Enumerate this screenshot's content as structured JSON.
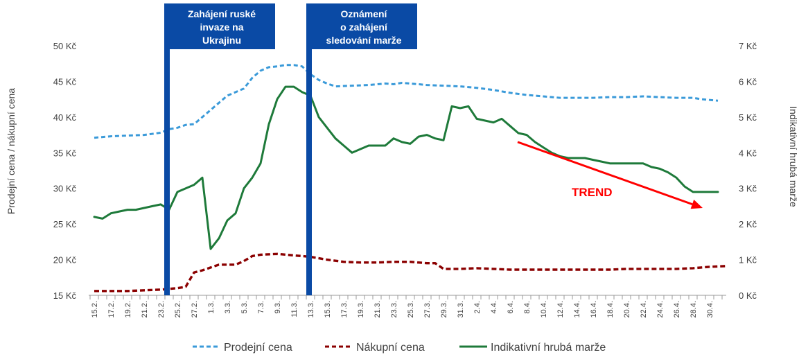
{
  "chart_data": {
    "type": "line",
    "ylabel": "Prodejní cena / nákupní cena",
    "y2label": "Indikativní  hrubá  marže",
    "ylim": [
      15,
      50
    ],
    "y2lim": [
      0,
      7
    ],
    "yticks": [
      "15 Kč",
      "20 Kč",
      "25 Kč",
      "30 Kč",
      "35 Kč",
      "40 Kč",
      "45 Kč",
      "50 Kč"
    ],
    "y2ticks": [
      "0 Kč",
      "1 Kč",
      "2 Kč",
      "3 Kč",
      "4 Kč",
      "5 Kč",
      "6 Kč",
      "7 Kč"
    ],
    "x_tick_labels": [
      "15.2.",
      "17.2.",
      "19.2.",
      "21.2.",
      "23.2.",
      "25.2.",
      "27.2.",
      "1.3.",
      "3.3.",
      "5.3.",
      "7.3.",
      "9.3.",
      "11.3.",
      "13.3.",
      "15.3.",
      "17.3.",
      "19.3.",
      "21.3.",
      "23.3.",
      "25.3.",
      "27.3.",
      "29.3.",
      "31.3.",
      "2.4.",
      "4.4.",
      "6.4.",
      "8.4.",
      "10.4.",
      "12.4.",
      "14.4.",
      "16.4.",
      "18.4.",
      "20.4.",
      "22.4.",
      "24.4.",
      "26.4.",
      "28.4.",
      "30.4."
    ],
    "series": [
      {
        "name": "Prodejní cena",
        "axis": "left",
        "color": "#3a9ad9",
        "dash": "dashed",
        "x": [
          0,
          4,
          8,
          12,
          16,
          18,
          20,
          22,
          24,
          26,
          28,
          30,
          32,
          34,
          36,
          38,
          40,
          42,
          44,
          46,
          48,
          50,
          52,
          54,
          56,
          58,
          62,
          66,
          70,
          72,
          74,
          76,
          78,
          80,
          84,
          88,
          92,
          96,
          100,
          104,
          108,
          112,
          116,
          120,
          124,
          128,
          132,
          136,
          140,
          144,
          146,
          150
        ],
        "values": [
          37.1,
          37.3,
          37.4,
          37.5,
          37.8,
          38.3,
          38.5,
          38.9,
          39.0,
          40.0,
          41.0,
          42.0,
          43.0,
          43.5,
          44.0,
          45.5,
          46.5,
          47.0,
          47.1,
          47.3,
          47.3,
          47.1,
          46.0,
          45.2,
          44.7,
          44.3,
          44.4,
          44.5,
          44.7,
          44.6,
          44.8,
          44.7,
          44.6,
          44.5,
          44.4,
          44.3,
          44.1,
          43.8,
          43.4,
          43.1,
          42.9,
          42.7,
          42.7,
          42.7,
          42.8,
          42.8,
          42.9,
          42.8,
          42.7,
          42.7,
          42.5,
          42.3
        ]
      },
      {
        "name": "Nákupní cena",
        "axis": "left",
        "color": "#8b0000",
        "dash": "dashed",
        "x": [
          0,
          4,
          8,
          12,
          16,
          20,
          22,
          24,
          26,
          28,
          30,
          34,
          36,
          38,
          40,
          44,
          48,
          52,
          56,
          60,
          64,
          68,
          72,
          76,
          80,
          82,
          84,
          88,
          92,
          96,
          100,
          104,
          108,
          112,
          116,
          120,
          124,
          128,
          132,
          136,
          140,
          144,
          148,
          152
        ],
        "values": [
          15.6,
          15.6,
          15.6,
          15.7,
          15.8,
          16.0,
          16.2,
          18.2,
          18.5,
          18.9,
          19.3,
          19.3,
          19.8,
          20.5,
          20.7,
          20.8,
          20.6,
          20.4,
          20.0,
          19.7,
          19.6,
          19.6,
          19.7,
          19.7,
          19.5,
          19.5,
          18.7,
          18.7,
          18.8,
          18.7,
          18.6,
          18.6,
          18.6,
          18.6,
          18.6,
          18.6,
          18.6,
          18.7,
          18.7,
          18.7,
          18.7,
          18.8,
          19.0,
          19.1
        ]
      },
      {
        "name": "Indikativní hrubá marže",
        "axis": "right",
        "color": "#1e7a3a",
        "dash": "solid",
        "x": [
          0,
          2,
          4,
          6,
          8,
          10,
          12,
          14,
          16,
          18,
          20,
          22,
          24,
          26,
          28,
          30,
          32,
          34,
          36,
          38,
          40,
          42,
          44,
          46,
          48,
          50,
          52,
          54,
          56,
          58,
          60,
          62,
          64,
          66,
          68,
          70,
          72,
          74,
          76,
          78,
          80,
          82,
          84,
          86,
          88,
          90,
          92,
          94,
          96,
          98,
          100,
          102,
          104,
          106,
          108,
          110,
          112,
          114,
          116,
          118,
          120,
          122,
          124,
          126,
          128,
          130,
          132,
          134,
          136,
          138,
          140,
          142,
          144,
          146,
          148,
          150
        ],
        "values": [
          2.2,
          2.15,
          2.3,
          2.35,
          2.4,
          2.4,
          2.45,
          2.5,
          2.55,
          2.4,
          2.9,
          3.0,
          3.1,
          3.3,
          1.3,
          1.6,
          2.1,
          2.3,
          3.0,
          3.3,
          3.7,
          4.8,
          5.5,
          5.85,
          5.85,
          5.7,
          5.6,
          5.0,
          4.7,
          4.4,
          4.2,
          4.0,
          4.1,
          4.2,
          4.2,
          4.2,
          4.4,
          4.3,
          4.25,
          4.45,
          4.5,
          4.4,
          4.35,
          5.3,
          5.25,
          5.3,
          4.95,
          4.9,
          4.85,
          4.95,
          4.75,
          4.55,
          4.5,
          4.3,
          4.15,
          4.0,
          3.9,
          3.85,
          3.85,
          3.85,
          3.8,
          3.75,
          3.7,
          3.7,
          3.7,
          3.7,
          3.7,
          3.6,
          3.55,
          3.45,
          3.3,
          3.05,
          2.9,
          2.9,
          2.9,
          2.9
        ]
      }
    ],
    "events": [
      {
        "label_lines": [
          "Zahájení ruské",
          "invaze na",
          "Ukrajinu"
        ],
        "x": 18
      },
      {
        "label_lines": [
          "Oznámení",
          "o zahájení",
          "sledování marže"
        ],
        "x": 52
      }
    ],
    "annotation": {
      "label": "TREND",
      "color": "#ff0000",
      "from": [
        96,
        4.3
      ],
      "to": [
        148,
        2.45
      ]
    },
    "event_color": "#0a4aa5",
    "grid": false,
    "legend_position": "bottom"
  }
}
